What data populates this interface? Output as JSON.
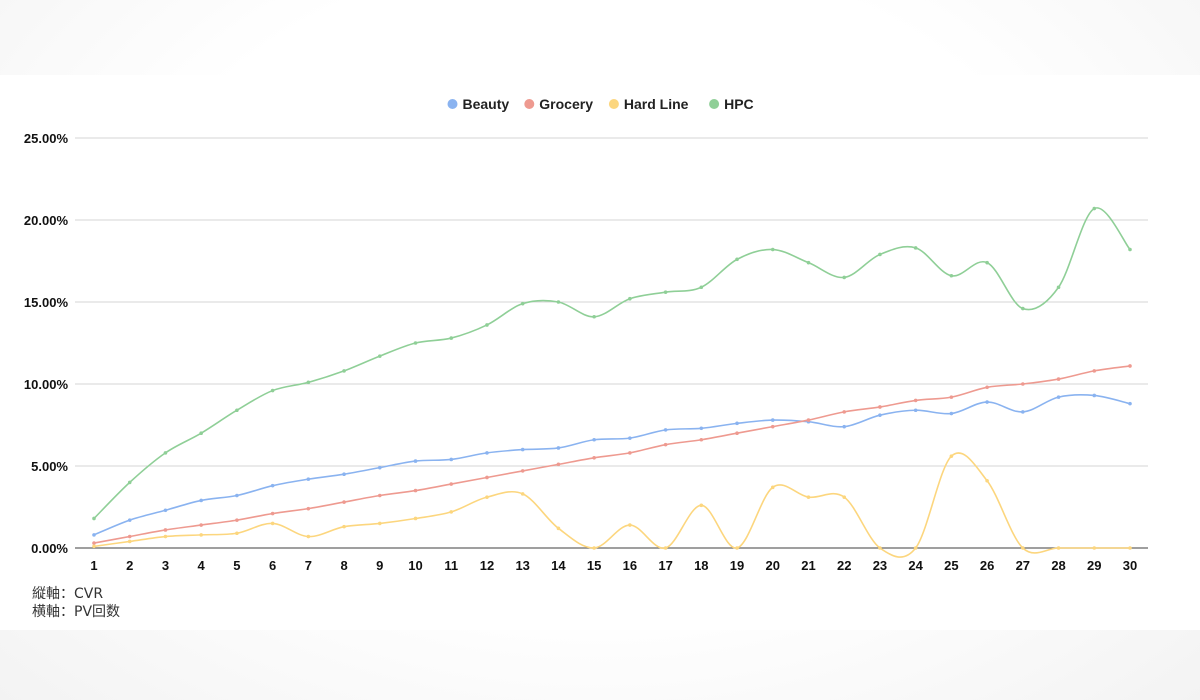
{
  "chart_data": {
    "type": "line",
    "title": "",
    "x": [
      1,
      2,
      3,
      4,
      5,
      6,
      7,
      8,
      9,
      10,
      11,
      12,
      13,
      14,
      15,
      16,
      17,
      18,
      19,
      20,
      21,
      22,
      23,
      24,
      25,
      26,
      27,
      28,
      29,
      30
    ],
    "ylim": [
      0,
      25
    ],
    "y_ticks": [
      "0.00%",
      "5.00%",
      "10.00%",
      "15.00%",
      "20.00%",
      "25.00%"
    ],
    "grid": true,
    "legend_position": "top-center",
    "series": [
      {
        "name": "Beauty",
        "color": "#8ab3f0",
        "values": [
          0.8,
          1.7,
          2.3,
          2.9,
          3.2,
          3.8,
          4.2,
          4.5,
          4.9,
          5.3,
          5.4,
          5.8,
          6.0,
          6.1,
          6.6,
          6.7,
          7.2,
          7.3,
          7.6,
          7.8,
          7.7,
          7.4,
          8.1,
          8.4,
          8.2,
          8.9,
          8.3,
          9.2,
          9.3,
          8.8
        ]
      },
      {
        "name": "Grocery",
        "color": "#ee9a90",
        "values": [
          0.3,
          0.7,
          1.1,
          1.4,
          1.7,
          2.1,
          2.4,
          2.8,
          3.2,
          3.5,
          3.9,
          4.3,
          4.7,
          5.1,
          5.5,
          5.8,
          6.3,
          6.6,
          7.0,
          7.4,
          7.8,
          8.3,
          8.6,
          9.0,
          9.2,
          9.8,
          10.0,
          10.3,
          10.8,
          11.1
        ]
      },
      {
        "name": "Hard Line",
        "color": "#fcd67e",
        "values": [
          0.1,
          0.4,
          0.7,
          0.8,
          0.9,
          1.5,
          0.7,
          1.3,
          1.5,
          1.8,
          2.2,
          3.1,
          3.3,
          1.2,
          0.0,
          1.4,
          0.0,
          2.6,
          0.0,
          3.7,
          3.1,
          3.1,
          0.0,
          0.0,
          5.6,
          4.1,
          0.0,
          0.0,
          0.0,
          0.0
        ]
      },
      {
        "name": "HPC",
        "color": "#8fcf97",
        "values": [
          1.8,
          4.0,
          5.8,
          7.0,
          8.4,
          9.6,
          10.1,
          10.8,
          11.7,
          12.5,
          12.8,
          13.6,
          14.9,
          15.0,
          14.1,
          15.2,
          15.6,
          15.9,
          17.6,
          18.2,
          17.4,
          16.5,
          17.9,
          18.3,
          16.6,
          17.4,
          14.6,
          15.9,
          20.7,
          18.2
        ]
      }
    ]
  },
  "notes": {
    "vertical_axis": "縦軸：CVR",
    "horizontal_axis": "横軸：PV回数"
  }
}
